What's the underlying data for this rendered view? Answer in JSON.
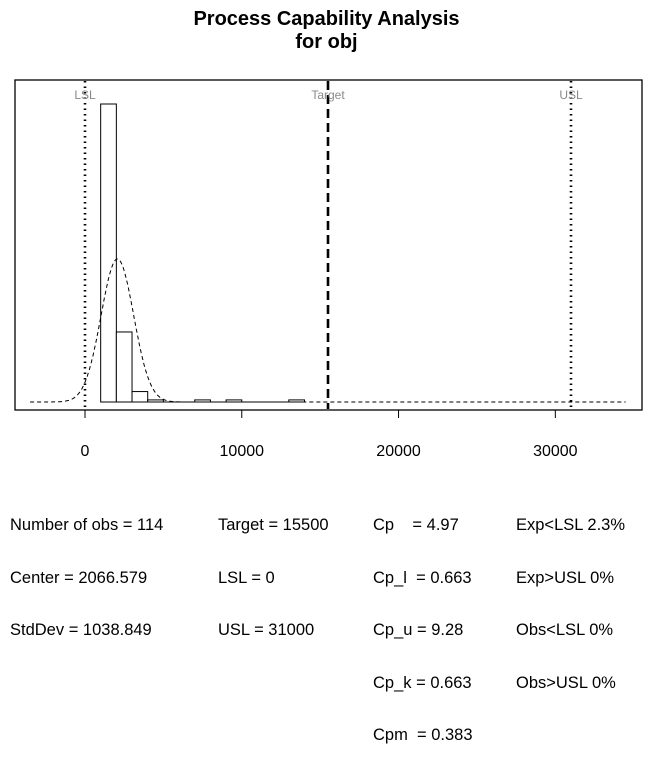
{
  "chart_data": {
    "type": "bar",
    "title_line1": "Process Capability Analysis",
    "title_line2": "for obj",
    "xlabel": "",
    "ylabel": "",
    "xlim": [
      -3500,
      35000
    ],
    "ylim": [
      0,
      1
    ],
    "x_ticks": [
      0,
      10000,
      20000,
      30000
    ],
    "bin_width": 1000,
    "bins": [
      {
        "start": 1000,
        "end": 2000,
        "height": 1.0
      },
      {
        "start": 2000,
        "end": 3000,
        "height": 0.235
      },
      {
        "start": 3000,
        "end": 4000,
        "height": 0.035
      },
      {
        "start": 4000,
        "end": 5000,
        "height": 0.007
      },
      {
        "start": 7000,
        "end": 8000,
        "height": 0.007
      },
      {
        "start": 9000,
        "end": 10000,
        "height": 0.007
      },
      {
        "start": 13000,
        "end": 14000,
        "height": 0.007
      }
    ],
    "normal_curve": {
      "mean": 2066.579,
      "sd": 1038.849,
      "peak_height": 0.48
    },
    "spec_lines": [
      {
        "label": "LSL",
        "value": 0,
        "style": "dotted"
      },
      {
        "label": "Target",
        "value": 15500,
        "style": "dashed"
      },
      {
        "label": "USL",
        "value": 31000,
        "style": "dotted"
      }
    ]
  },
  "stats": {
    "col1": [
      "Number of obs = 114",
      "Center = 2066.579",
      "StdDev = 1038.849"
    ],
    "col2": [
      "Target = 15500",
      "LSL = 0",
      "USL = 31000"
    ],
    "col3": [
      "Cp    = 4.97",
      "Cp_l  = 0.663",
      "Cp_u = 9.28",
      "Cp_k = 0.663",
      "Cpm  = 0.383"
    ],
    "col4": [
      "Exp<LSL 2.3%",
      "Exp>USL 0%",
      "Obs<LSL 0%",
      "Obs>USL 0%"
    ]
  }
}
